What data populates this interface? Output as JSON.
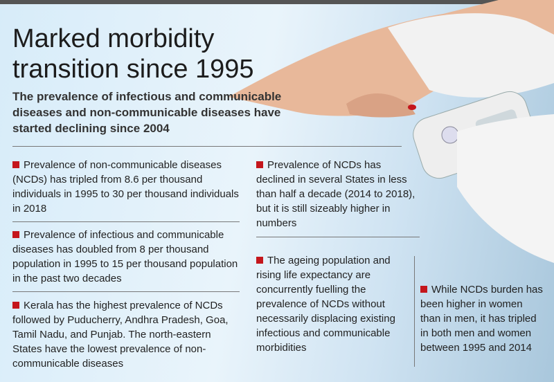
{
  "title": "Marked morbidity transition since 1995",
  "subtitle": "The prevalence of infectious and communicable diseases and non-communicable diseases have started declining since 2004",
  "points": [
    "Prevalence of non-communicable diseases (NCDs) has tripled from 8.6 per thousand individuals in 1995 to 30 per thousand individuals in 2018",
    "Prevalence of infectious and communicable diseases has doubled from 8 per thousand population in 1995 to 15 per thousand population in the past two decades",
    "Kerala has the highest prevalence of NCDs followed by Puducherry, Andhra Pradesh, Goa, Tamil Nadu, and Punjab. The north-eastern States have the lowest prevalence of non-communicable diseases",
    "Prevalence of NCDs has declined in several States in less than half a decade (2014 to 2018), but it is still sizeably higher in numbers",
    "The ageing population and rising life expectancy are concurrently fuelling the prevalence of NCDs without necessarily displacing existing infectious and communicable morbidities",
    "While NCDs burden has been higher in women than in men, it has tripled in both men and women between 1995 and 2014"
  ]
}
